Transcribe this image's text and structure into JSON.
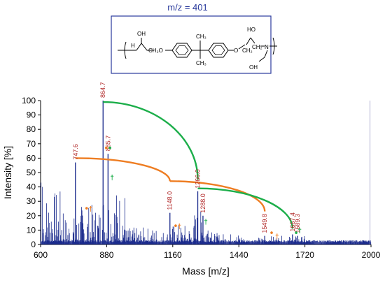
{
  "header": {
    "title": "m/z = 401"
  },
  "structure": {
    "labels": {
      "oh_left": "OH",
      "h_end": "H",
      "ch2o": "CH₂O",
      "ch3_top": "CH₃",
      "ch3_bottom": "CH₃",
      "ho": "HO",
      "ch2_a": "CH₂",
      "ch2_b": "CH₂",
      "n": "N",
      "oh_bottom": "OH",
      "o_ether": "O"
    }
  },
  "chart_data": {
    "type": "line",
    "title": "",
    "xlabel": "Mass [m/z]",
    "ylabel": "Intensity [%]",
    "xlim": [
      600,
      2000
    ],
    "ylim": [
      0,
      100
    ],
    "xticks": [
      600,
      880,
      1160,
      1440,
      1720,
      2000
    ],
    "yticks": [
      0,
      10,
      20,
      30,
      40,
      50,
      60,
      70,
      80,
      90,
      100
    ],
    "grid": false,
    "peaks": [
      {
        "mz": 864.7,
        "intensity": 100,
        "label": "864.7"
      },
      {
        "mz": 747.6,
        "intensity": 57,
        "label": "747.6"
      },
      {
        "mz": 885.7,
        "intensity": 63,
        "label": "885.7"
      },
      {
        "mz": 1148.0,
        "intensity": 22,
        "label": "1148.0"
      },
      {
        "mz": 1266.0,
        "intensity": 37,
        "label": "1266.0"
      },
      {
        "mz": 1288.0,
        "intensity": 20,
        "label": "1288.0"
      },
      {
        "mz": 1549.8,
        "intensity": 6,
        "label": "1549.8"
      },
      {
        "mz": 1667.4,
        "intensity": 7,
        "label": "1667.4"
      },
      {
        "mz": 1689.3,
        "intensity": 6,
        "label": "1689.3"
      }
    ],
    "series_colors": {
      "spectrum": "#1a2a8c",
      "orange": "#ee7d22",
      "green": "#1cae4a",
      "peak_label": "#b22a2a",
      "header": "#2a3a9c"
    },
    "arcs": [
      {
        "color": "orange",
        "from": [
          747.6,
          60
        ],
        "to": [
          1148.0,
          44
        ]
      },
      {
        "color": "orange",
        "from": [
          1148.0,
          44
        ],
        "to": [
          1549.8,
          23
        ]
      },
      {
        "color": "green",
        "from": [
          864.7,
          99
        ],
        "to": [
          1266.0,
          45
        ]
      },
      {
        "color": "green",
        "from": [
          1266.0,
          39
        ],
        "to": [
          1667.4,
          11
        ]
      }
    ],
    "markers": [
      {
        "mz": 795,
        "y": 23,
        "symbol": "•",
        "color": "orange"
      },
      {
        "mz": 812,
        "y": 23,
        "symbol": "†",
        "color": "orange"
      },
      {
        "mz": 878,
        "y": 65,
        "symbol": "•",
        "color": "orange"
      },
      {
        "mz": 894,
        "y": 65,
        "symbol": "•",
        "color": "green"
      },
      {
        "mz": 903,
        "y": 45,
        "symbol": "†",
        "color": "green"
      },
      {
        "mz": 1172,
        "y": 11,
        "symbol": "•",
        "color": "orange"
      },
      {
        "mz": 1188,
        "y": 11,
        "symbol": "†",
        "color": "orange"
      },
      {
        "mz": 1300,
        "y": 14,
        "symbol": "†",
        "color": "green"
      },
      {
        "mz": 1579,
        "y": 6,
        "symbol": "•",
        "color": "orange"
      },
      {
        "mz": 1602,
        "y": 4,
        "symbol": "†",
        "color": "orange"
      },
      {
        "mz": 1683,
        "y": 6,
        "symbol": "•",
        "color": "green"
      },
      {
        "mz": 1698,
        "y": 8,
        "symbol": "†",
        "color": "green"
      }
    ]
  }
}
